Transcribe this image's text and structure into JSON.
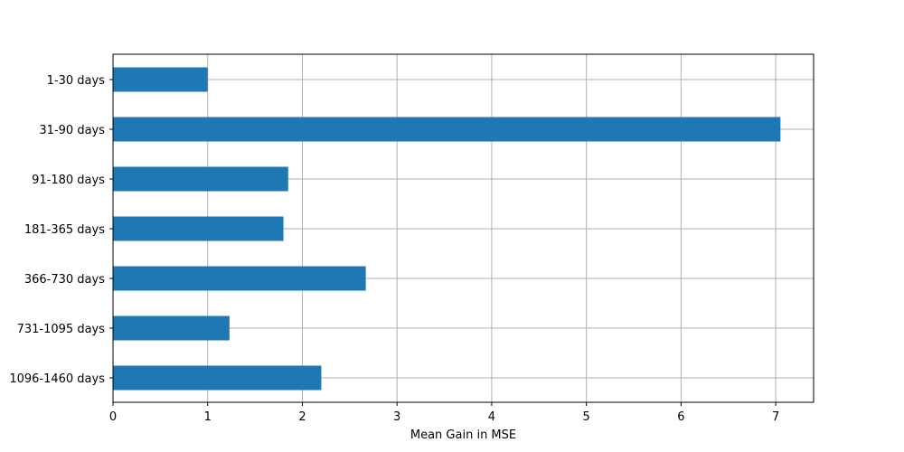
{
  "chart_data": {
    "type": "bar",
    "orientation": "horizontal",
    "categories": [
      "1-30 days",
      "31-90 days",
      "91-180 days",
      "181-365 days",
      "366-730 days",
      "731-1095 days",
      "1096-1460 days"
    ],
    "values": [
      1.0,
      7.05,
      1.85,
      1.8,
      2.67,
      1.23,
      2.2
    ],
    "xlabel": "Mean Gain in MSE",
    "ylabel": "",
    "xlim": [
      0,
      7.4
    ],
    "xticks": [
      0,
      1,
      2,
      3,
      4,
      5,
      6,
      7
    ],
    "grid": true,
    "bar_color": "#1f77b4"
  }
}
